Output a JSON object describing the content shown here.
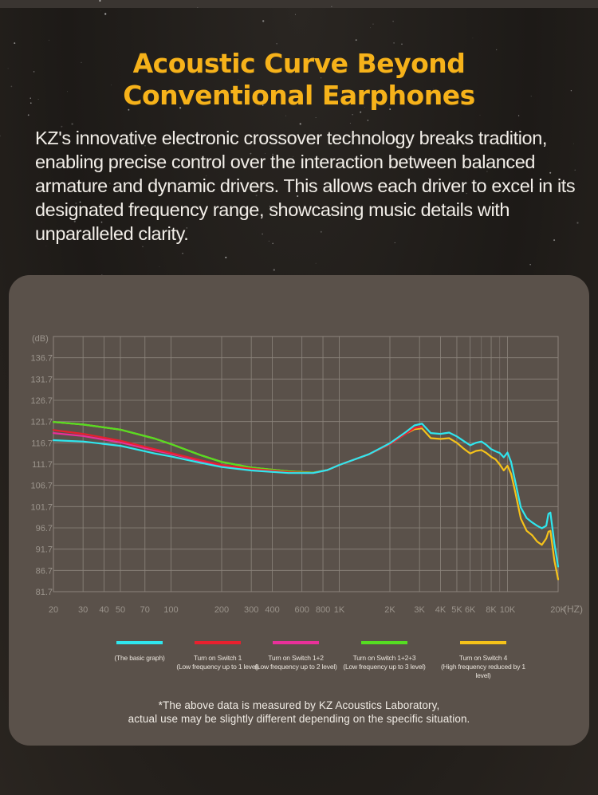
{
  "heading": {
    "line1": "Acoustic Curve Beyond",
    "line2": "Conventional Earphones"
  },
  "description": "KZ's innovative electronic crossover technology breaks tradition, enabling precise control over the interaction between balanced armature and dynamic drivers. This allows each driver to excel in its designated frequency range, showcasing music details with unparalleled clarity.",
  "legend": [
    {
      "line1": "(The basic graph)",
      "line2": "",
      "color": "#2fe6ee"
    },
    {
      "line1": "Turn on Switch 1",
      "line2": "(Low frequency up to 1 level)",
      "color": "#e8202e"
    },
    {
      "line1": "Turn on Switch 1+2",
      "line2": "(Low frequency up to 2 level)",
      "color": "#e8309a"
    },
    {
      "line1": "Turn on Switch 1+2+3",
      "line2": "(Low frequency up to 3 level)",
      "color": "#55dd22"
    },
    {
      "line1": "Turn on Switch 4",
      "line2": "(High frequency reduced by 1 level)",
      "color": "#f5c21a"
    }
  ],
  "footnote": {
    "line1": "*The above data is measured by KZ Acoustics Laboratory,",
    "line2": "actual use may be slightly different depending on the specific situation."
  },
  "colors": {
    "accent": "#f6b21a",
    "panel": "#5a514a",
    "grid": "#8d857d"
  },
  "chart_data": {
    "type": "line",
    "x_scale": "log",
    "xlim": [
      20,
      20000
    ],
    "ylim": [
      81.7,
      141.7
    ],
    "ylabel": "(dB)",
    "xlabel": "(HZ)",
    "y_ticks": [
      "136.7",
      "131.7",
      "126.7",
      "121.7",
      "116.7",
      "111.7",
      "106.7",
      "101.7",
      "96.7",
      "91.7",
      "86.7",
      "81.7"
    ],
    "y_tick_values": [
      136.7,
      131.7,
      126.7,
      121.7,
      116.7,
      111.7,
      106.7,
      101.7,
      96.7,
      91.7,
      86.7,
      81.7
    ],
    "x_ticks": [
      "20",
      "30",
      "40",
      "50",
      "70",
      "100",
      "200",
      "300",
      "400",
      "600",
      "800",
      "1K",
      "2K",
      "3K",
      "4K",
      "5K",
      "6K",
      "8K",
      "10K",
      "20K"
    ],
    "x_tick_values": [
      20,
      30,
      40,
      50,
      70,
      100,
      200,
      300,
      400,
      600,
      800,
      1000,
      2000,
      3000,
      4000,
      5000,
      6000,
      8000,
      10000,
      20000
    ],
    "series": [
      {
        "name": "(The basic graph)",
        "color": "#2fe6ee",
        "x": [
          20,
          30,
          50,
          80,
          100,
          150,
          200,
          300,
          500,
          700,
          850,
          1000,
          1500,
          2000,
          2500,
          2800,
          3100,
          3500,
          4000,
          4500,
          5000,
          5500,
          6000,
          6500,
          7000,
          7500,
          8000,
          8500,
          9000,
          9500,
          10000,
          10500,
          11000,
          12000,
          13000,
          14000,
          15000,
          16000,
          17000,
          17500,
          18000,
          19000,
          20000
        ],
        "y": [
          117.3,
          117.0,
          116.0,
          114.2,
          113.5,
          112.0,
          111.0,
          110.2,
          109.6,
          109.6,
          110.3,
          111.5,
          114.0,
          116.6,
          119.3,
          120.8,
          121.2,
          119.0,
          118.8,
          119.1,
          118.2,
          117.1,
          116.1,
          116.7,
          117.0,
          116.2,
          115.2,
          114.7,
          114.3,
          113.3,
          114.4,
          112.2,
          108.5,
          101.5,
          99.0,
          98.0,
          97.2,
          96.6,
          97.2,
          100.0,
          100.3,
          93.0,
          87.6
        ]
      },
      {
        "name": "Turn on Switch 1",
        "color": "#e8202e",
        "x": [
          20,
          30,
          50,
          80,
          100,
          150,
          200,
          300,
          500,
          700,
          850,
          1000,
          1500,
          2000,
          2500,
          2800,
          3100
        ],
        "y": [
          119.7,
          118.8,
          117.2,
          115.2,
          114.3,
          112.6,
          111.5,
          110.6,
          109.8,
          109.6,
          110.3,
          111.5,
          114.0,
          116.4,
          118.9,
          120.2,
          120.5
        ]
      },
      {
        "name": "Turn on Switch 1+2",
        "color": "#e8309a",
        "x": [
          20,
          30,
          50,
          80,
          100,
          150,
          200,
          300,
          500,
          700,
          850,
          1000,
          1500,
          2000,
          2500,
          2800,
          3100
        ],
        "y": [
          119.0,
          118.3,
          116.8,
          114.9,
          114.1,
          112.4,
          111.4,
          110.4,
          109.7,
          109.6,
          110.3,
          111.5,
          114.0,
          116.4,
          118.9,
          120.2,
          120.5
        ]
      },
      {
        "name": "Turn on Switch 1+2+3",
        "color": "#55dd22",
        "x": [
          20,
          30,
          50,
          80,
          100,
          150,
          200,
          300,
          500,
          700,
          850,
          1000,
          1500,
          2000,
          2500,
          2800,
          3100
        ],
        "y": [
          121.6,
          121.0,
          119.8,
          117.7,
          116.4,
          113.8,
          112.2,
          110.9,
          110.0,
          109.7,
          110.3,
          111.5,
          114.0,
          116.4,
          118.9,
          120.2,
          120.5
        ]
      },
      {
        "name": "Turn on Switch 4",
        "color": "#f5c21a",
        "x": [
          20,
          30,
          50,
          80,
          100,
          150,
          200,
          300,
          500,
          700,
          850,
          1000,
          1500,
          2000,
          2500,
          2800,
          3100,
          3500,
          4000,
          4500,
          5000,
          5500,
          6000,
          6500,
          7000,
          7500,
          8000,
          8500,
          9000,
          9500,
          10000,
          10500,
          11000,
          12000,
          13000,
          14000,
          15000,
          16000,
          17000,
          17500,
          18000,
          19000,
          20000
        ],
        "y": [
          121.6,
          121.0,
          119.8,
          117.7,
          116.4,
          113.8,
          112.2,
          110.9,
          110.0,
          109.7,
          110.3,
          111.5,
          114.0,
          116.4,
          118.9,
          119.9,
          120.1,
          117.8,
          117.6,
          117.8,
          116.7,
          115.3,
          114.2,
          114.8,
          115.0,
          114.3,
          113.4,
          112.8,
          111.6,
          110.2,
          111.3,
          109.4,
          106.0,
          98.9,
          96.0,
          95.0,
          93.5,
          92.7,
          94.2,
          95.8,
          96.0,
          89.0,
          84.6
        ]
      }
    ]
  }
}
